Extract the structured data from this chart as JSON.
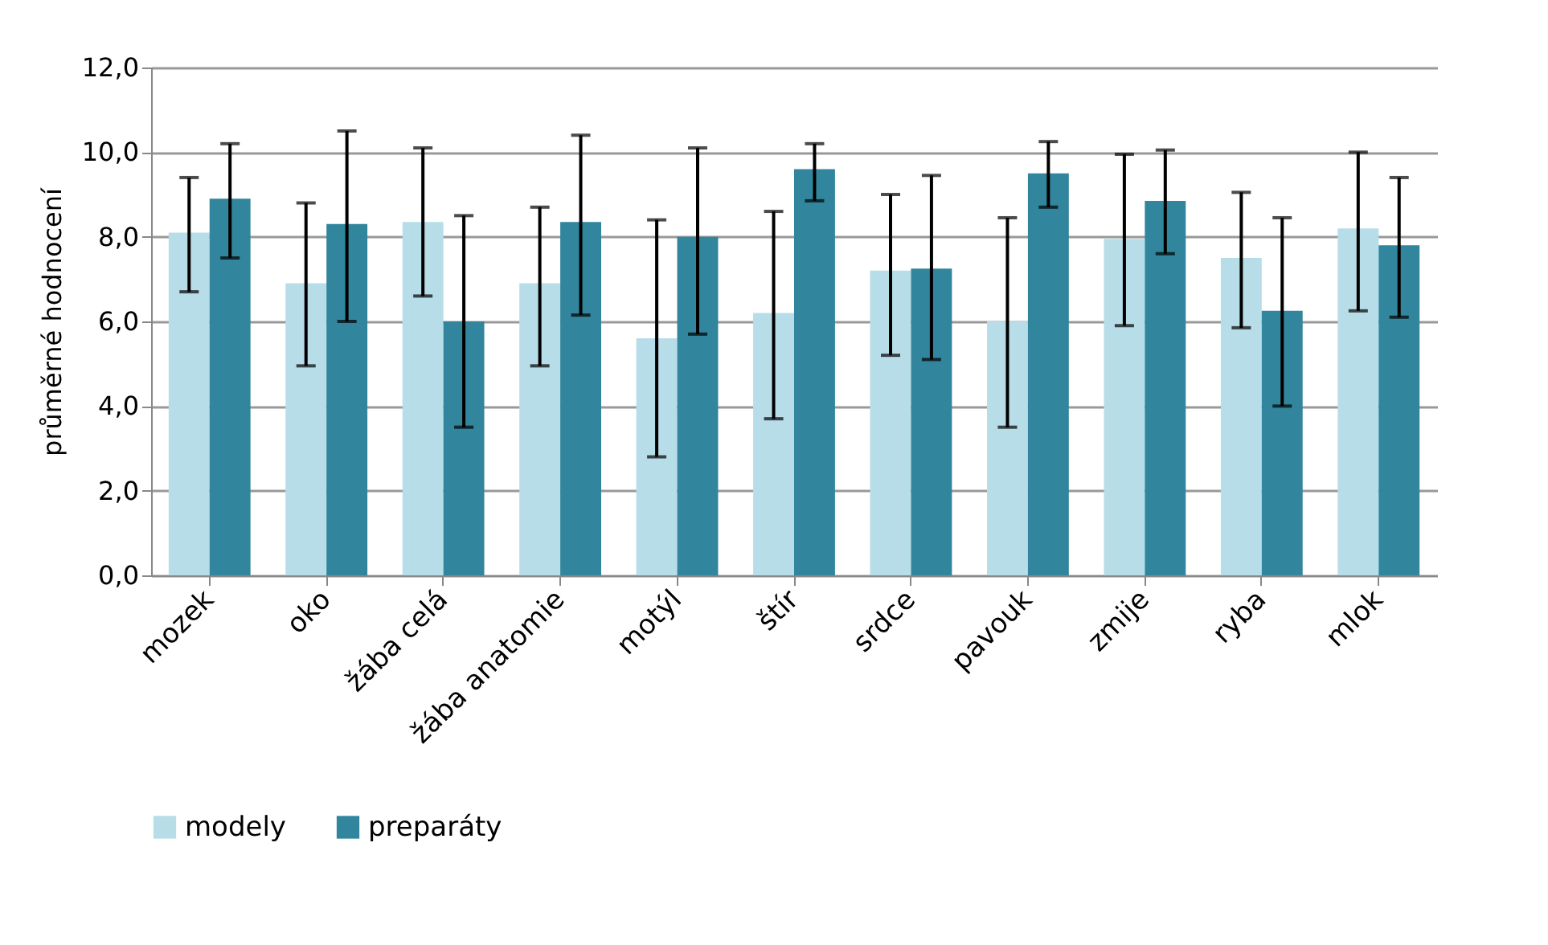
{
  "chart_data": {
    "type": "bar",
    "ylabel": "průměrné hodnocení",
    "categories": [
      "mozek",
      "oko",
      "žába celá",
      "žába anatomie",
      "motýl",
      "štír",
      "srdce",
      "pavouk",
      "zmije",
      "ryba",
      "mlok"
    ],
    "series": [
      {
        "name": "modely",
        "color": "#b7dde8",
        "values": [
          8.1,
          6.9,
          8.35,
          6.9,
          5.6,
          6.2,
          7.2,
          6.0,
          7.95,
          7.5,
          8.2
        ],
        "errors": [
          [
            6.7,
            9.4
          ],
          [
            4.95,
            8.8
          ],
          [
            6.6,
            10.1
          ],
          [
            4.95,
            8.7
          ],
          [
            2.8,
            8.4
          ],
          [
            3.7,
            8.6
          ],
          [
            5.2,
            9.0
          ],
          [
            3.5,
            8.45
          ],
          [
            5.9,
            9.95
          ],
          [
            5.85,
            9.05
          ],
          [
            6.25,
            10.0
          ]
        ]
      },
      {
        "name": "preparáty",
        "color": "#31859c",
        "values": [
          8.9,
          8.3,
          6.0,
          8.35,
          8.0,
          9.6,
          7.25,
          9.5,
          8.85,
          6.25,
          7.8
        ],
        "errors": [
          [
            7.5,
            10.2
          ],
          [
            6.0,
            10.5
          ],
          [
            3.5,
            8.5
          ],
          [
            6.15,
            10.4
          ],
          [
            5.7,
            10.1
          ],
          [
            8.85,
            10.2
          ],
          [
            5.1,
            9.45
          ],
          [
            8.7,
            10.25
          ],
          [
            7.6,
            10.05
          ],
          [
            4.0,
            8.45
          ],
          [
            6.1,
            9.4
          ]
        ]
      }
    ],
    "ylim": [
      0,
      12
    ],
    "yticks": [
      {
        "value": 0,
        "label": "0,0"
      },
      {
        "value": 2,
        "label": "2,0"
      },
      {
        "value": 4,
        "label": "4,0"
      },
      {
        "value": 6,
        "label": "6,0"
      },
      {
        "value": 8,
        "label": "8,0"
      },
      {
        "value": 10,
        "label": "10,0"
      },
      {
        "value": 12,
        "label": "12,0"
      }
    ],
    "grid": "y",
    "legend": "bottom"
  }
}
